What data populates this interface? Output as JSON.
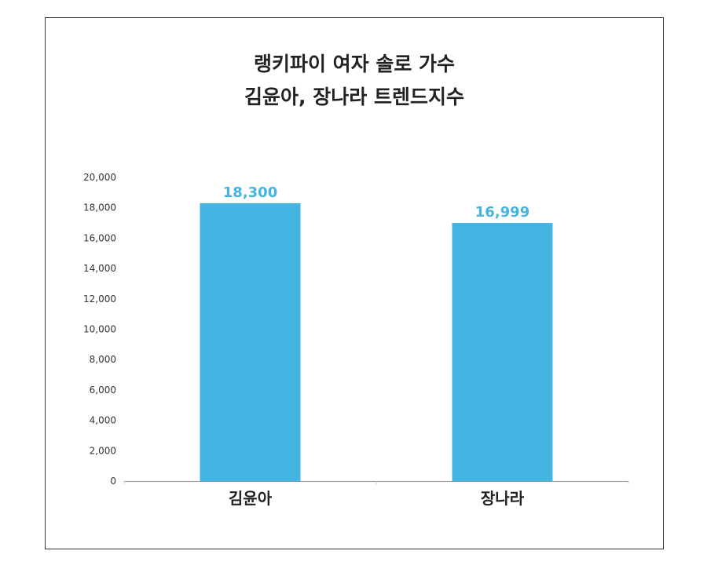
{
  "chart_data": {
    "type": "bar",
    "title_lines": [
      "랭키파이 여자 솔로 가수",
      "김윤아, 장나라 트렌드지수"
    ],
    "categories": [
      "김윤아",
      "장나라"
    ],
    "values": [
      18300,
      16999
    ],
    "data_labels": [
      "18,300",
      "16,999"
    ],
    "ylim": [
      0,
      20000
    ],
    "yticks": [
      0,
      2000,
      4000,
      6000,
      8000,
      10000,
      12000,
      14000,
      16000,
      18000,
      20000
    ],
    "ytick_labels": [
      "0",
      "2,000",
      "4,000",
      "6,000",
      "8,000",
      "10,000",
      "12,000",
      "14,000",
      "16,000",
      "18,000",
      "20,000"
    ],
    "grid": false,
    "bar_color": "#44B4E3",
    "label_color": "#44B4E3"
  }
}
